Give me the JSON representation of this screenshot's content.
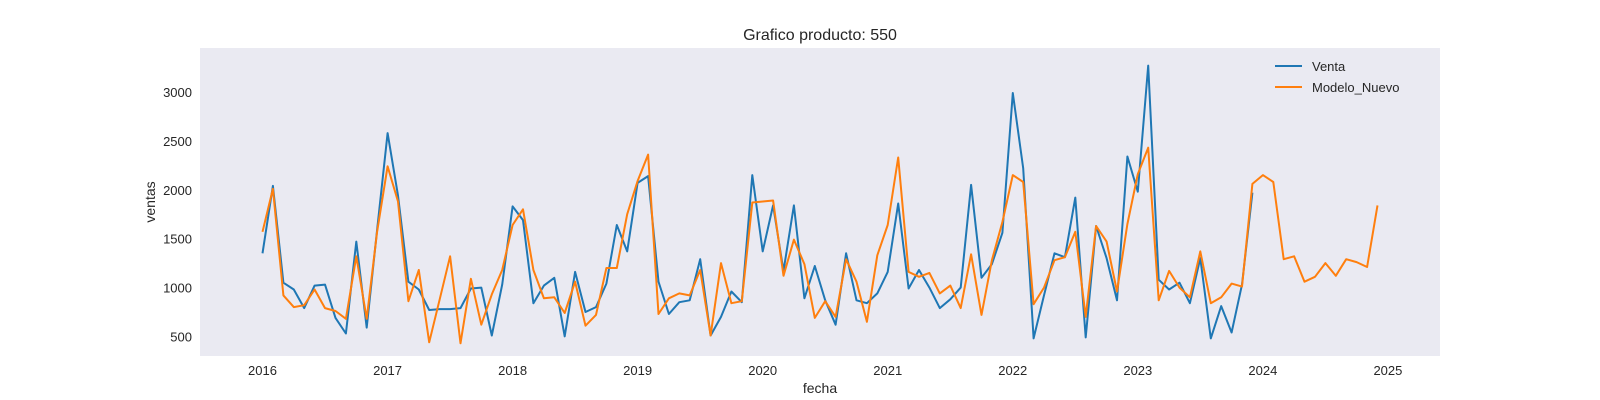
{
  "chart_data": {
    "type": "line",
    "title": "Grafico producto: 550",
    "xlabel": "fecha",
    "ylabel": "ventas",
    "xlim": [
      "2015-07-01",
      "2025-06-01"
    ],
    "ylim": [
      300,
      3450
    ],
    "x_ticks": [
      "2016",
      "2017",
      "2018",
      "2019",
      "2020",
      "2021",
      "2022",
      "2023",
      "2024",
      "2025"
    ],
    "y_ticks": [
      500,
      1000,
      1500,
      2000,
      2500,
      3000
    ],
    "grid": false,
    "legend_position": "top-right",
    "colors": {
      "background": "#eaeaf2",
      "Venta": "#1f77b4",
      "Modelo_Nuevo": "#ff7f0e"
    },
    "series": [
      {
        "name": "Venta",
        "start": "2016-01",
        "values": [
          1350,
          2040,
          1050,
          980,
          790,
          1020,
          1030,
          690,
          530,
          1470,
          590,
          1590,
          2580,
          1940,
          1060,
          980,
          770,
          780,
          780,
          790,
          990,
          1000,
          510,
          1030,
          1830,
          1690,
          840,
          1020,
          1100,
          500,
          1160,
          750,
          800,
          1040,
          1640,
          1370,
          2070,
          2140,
          1060,
          730,
          850,
          870,
          1290,
          510,
          700,
          960,
          850,
          2150,
          1370,
          1840,
          1170,
          1840,
          890,
          1220,
          870,
          620,
          1350,
          870,
          840,
          940,
          1160,
          1860,
          990,
          1180,
          1000,
          790,
          880,
          1000,
          2050,
          1100,
          1240,
          1560,
          2990,
          2220,
          480,
          920,
          1350,
          1310,
          1920,
          490,
          1630,
          1300,
          870,
          2340,
          1980,
          3270,
          1080,
          980,
          1050,
          840,
          1300,
          480,
          810,
          540,
          1030,
          1970
        ],
        "end": "2023-12"
      },
      {
        "name": "Modelo_Nuevo",
        "start": "2016-01",
        "values": [
          1570,
          2010,
          920,
          800,
          820,
          980,
          790,
          760,
          680,
          1320,
          680,
          1570,
          2240,
          1880,
          860,
          1180,
          440,
          880,
          1320,
          430,
          1090,
          620,
          930,
          1180,
          1640,
          1800,
          1180,
          890,
          900,
          740,
          1060,
          610,
          720,
          1200,
          1200,
          1750,
          2090,
          2360,
          730,
          890,
          940,
          920,
          1180,
          510,
          1250,
          840,
          860,
          1870,
          1880,
          1890,
          1120,
          1490,
          1240,
          690,
          860,
          700,
          1290,
          1060,
          650,
          1330,
          1640,
          2330,
          1160,
          1110,
          1150,
          940,
          1020,
          790,
          1340,
          720,
          1280,
          1670,
          2150,
          2080,
          830,
          1000,
          1280,
          1310,
          1570,
          700,
          1630,
          1470,
          960,
          1650,
          2160,
          2430,
          870,
          1170,
          1000,
          900,
          1370,
          840,
          900,
          1040,
          1010,
          2060,
          2150,
          2080,
          1290,
          1320,
          1060,
          1110,
          1250,
          1120,
          1290,
          1260,
          1210,
          1840
        ],
        "end": "2024-12"
      }
    ]
  }
}
